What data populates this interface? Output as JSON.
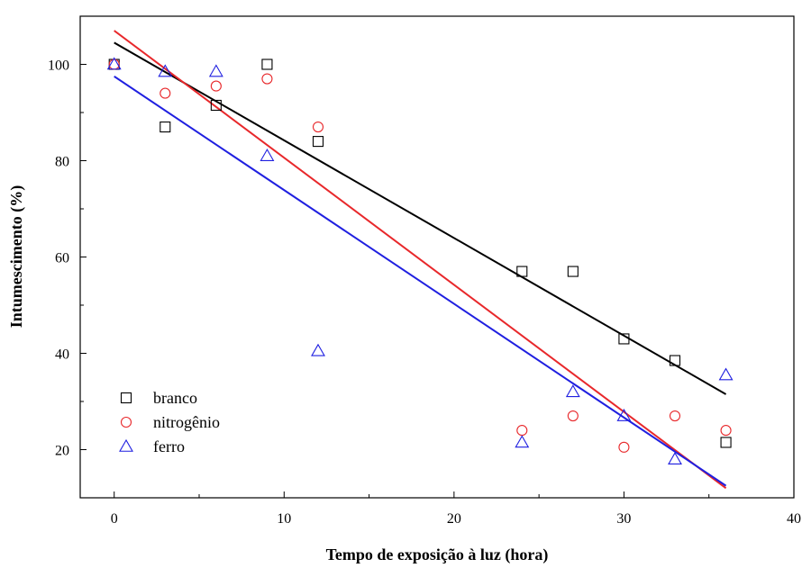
{
  "chart_data": {
    "type": "scatter",
    "title": "",
    "xlabel": "Tempo de exposição à luz (hora)",
    "ylabel": "Intumescimento (%)",
    "xlim": [
      -2,
      40
    ],
    "ylim": [
      10,
      110
    ],
    "xticks": [
      0,
      10,
      20,
      30,
      40
    ],
    "yticks": [
      20,
      40,
      60,
      80,
      100
    ],
    "grid": false,
    "legend_position": "bottom-left",
    "series": [
      {
        "name": "branco",
        "marker": "square",
        "color": "#000000",
        "x": [
          0,
          3,
          6,
          9,
          12,
          24,
          27,
          30,
          33,
          36
        ],
        "y": [
          100,
          87,
          91.5,
          100,
          84,
          57,
          57,
          43,
          38.5,
          21.5
        ],
        "fit": {
          "x": [
            0,
            36
          ],
          "y": [
            104.5,
            31.5
          ]
        }
      },
      {
        "name": "nitrogênio",
        "marker": "circle",
        "color": "#e8282b",
        "x": [
          0,
          3,
          6,
          9,
          12,
          24,
          27,
          30,
          33,
          36
        ],
        "y": [
          100,
          94,
          95.5,
          97,
          87,
          24,
          27,
          20.5,
          27,
          24
        ],
        "fit": {
          "x": [
            0,
            36
          ],
          "y": [
            107,
            12
          ]
        }
      },
      {
        "name": "ferro",
        "marker": "triangle",
        "color": "#1f1fe0",
        "x": [
          0,
          3,
          6,
          9,
          12,
          24,
          27,
          30,
          33,
          36
        ],
        "y": [
          100,
          98.5,
          98.5,
          81,
          40.5,
          21.5,
          32,
          27,
          18,
          35.5
        ],
        "fit": {
          "x": [
            0,
            36
          ],
          "y": [
            97.5,
            12.5
          ]
        }
      }
    ]
  }
}
